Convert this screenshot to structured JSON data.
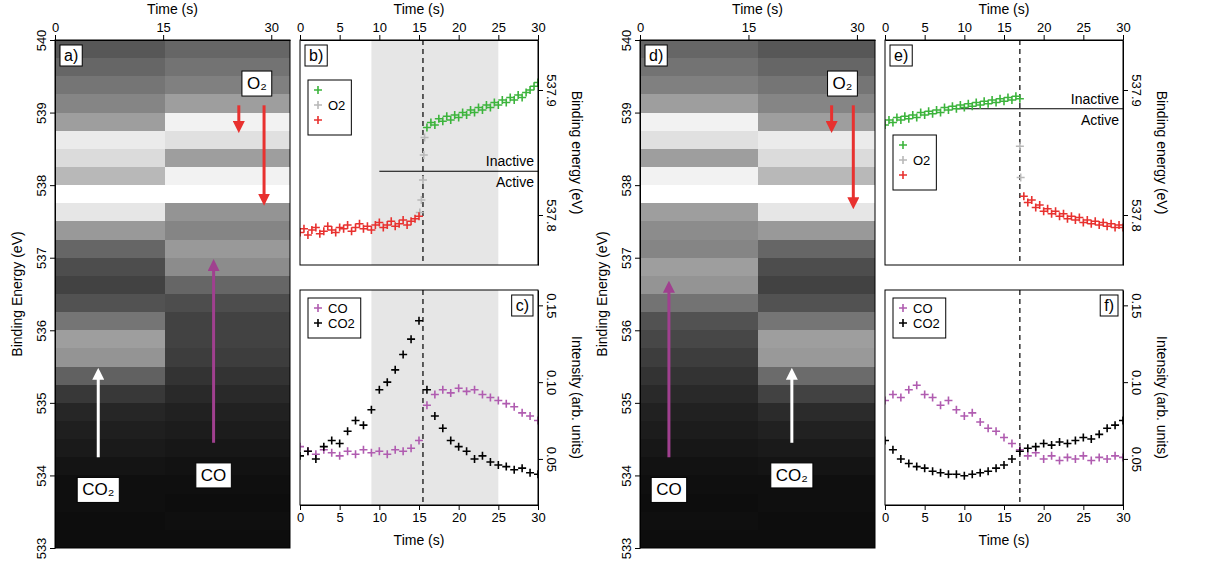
{
  "chart_data": [
    {
      "type": "heatmap",
      "label": "a)",
      "x_label": "Time (s)",
      "y_label": "Binding Energy (eV)",
      "xlim": [
        0,
        32.6
      ],
      "xticks": [
        0,
        15,
        30
      ],
      "ylim": [
        533,
        540
      ],
      "yticks": [
        533,
        534,
        535,
        536,
        537,
        538,
        539,
        540
      ],
      "x_edges": [
        0,
        15.2,
        32.6
      ],
      "y_edges": [
        533,
        533.25,
        533.5,
        533.75,
        534,
        534.25,
        534.5,
        534.75,
        535,
        535.25,
        535.5,
        535.75,
        536,
        536.25,
        536.5,
        536.75,
        537,
        537.25,
        537.5,
        537.75,
        538,
        538.25,
        538.5,
        538.75,
        539,
        539.25,
        539.5,
        539.75,
        540
      ],
      "zlim": [
        0,
        1
      ],
      "cells": [
        [
          0.05,
          0.05
        ],
        [
          0.05,
          0.06
        ],
        [
          0.06,
          0.05
        ],
        [
          0.06,
          0.06
        ],
        [
          0.08,
          0.07
        ],
        [
          0.1,
          0.09
        ],
        [
          0.12,
          0.11
        ],
        [
          0.15,
          0.13
        ],
        [
          0.22,
          0.16
        ],
        [
          0.38,
          0.2
        ],
        [
          0.58,
          0.24
        ],
        [
          0.62,
          0.26
        ],
        [
          0.46,
          0.26
        ],
        [
          0.32,
          0.3
        ],
        [
          0.26,
          0.4
        ],
        [
          0.3,
          0.55
        ],
        [
          0.4,
          0.6
        ],
        [
          0.6,
          0.52
        ],
        [
          0.9,
          0.58
        ],
        [
          1.0,
          1.0
        ],
        [
          0.72,
          0.95
        ],
        [
          0.86,
          0.62
        ],
        [
          0.92,
          0.88
        ],
        [
          0.62,
          0.95
        ],
        [
          0.52,
          0.62
        ],
        [
          0.46,
          0.5
        ],
        [
          0.4,
          0.45
        ],
        [
          0.34,
          0.4
        ]
      ],
      "annotations": [
        {
          "text": "O₂",
          "x": 28,
          "y": 539.4,
          "color": "#e8312f",
          "arrows": [
            [
              25.5,
              539.1,
              25.5,
              538.8
            ],
            [
              29,
              539.1,
              29,
              537.8
            ]
          ]
        },
        {
          "text": "CO₂",
          "x": 6,
          "y": 533.8,
          "color": "#ffffff",
          "arrows": [
            [
              6,
              534.25,
              6,
              535.4
            ]
          ]
        },
        {
          "text": "CO",
          "x": 22,
          "y": 534.0,
          "color": "#a0408f",
          "arrows": [
            [
              22,
              534.45,
              22,
              536.9
            ]
          ]
        }
      ]
    },
    {
      "type": "scatter",
      "label": "b)",
      "x_label": "Time (s)",
      "y_label": "Binding energy (eV)",
      "xlim": [
        0,
        30
      ],
      "xticks": [
        0,
        5,
        10,
        15,
        20,
        25,
        30
      ],
      "ylim": [
        537.76,
        537.94
      ],
      "yticks": [
        537.8,
        537.9
      ],
      "marker": "plus",
      "legend": "upper left",
      "span": [
        9,
        25
      ],
      "vline": 15.5,
      "divider": {
        "x": [
          10,
          30
        ],
        "y": 537.835,
        "labels": [
          "Inactive",
          "Active"
        ]
      },
      "series": [
        {
          "name": null,
          "color": "#3cb43c",
          "x": [
            16,
            16.5,
            17,
            17.5,
            18,
            18.5,
            19,
            19.5,
            20,
            20.5,
            21,
            21.5,
            22,
            22.5,
            23,
            23.5,
            24,
            24.5,
            25,
            25.5,
            26,
            26.5,
            27,
            27.5,
            28,
            28.5,
            29,
            29.5,
            30
          ],
          "values": [
            537.87,
            537.874,
            537.872,
            537.877,
            537.875,
            537.879,
            537.876,
            537.88,
            537.878,
            537.882,
            537.88,
            537.884,
            537.882,
            537.886,
            537.884,
            537.888,
            537.886,
            537.89,
            537.888,
            537.892,
            537.89,
            537.894,
            537.892,
            537.896,
            537.894,
            537.898,
            537.9,
            537.903,
            537.906
          ]
        },
        {
          "name": "O2",
          "color": "#b8b8b8",
          "x": [
            15.1,
            15.3,
            15.5,
            15.6,
            15.7
          ],
          "values": [
            537.802,
            537.812,
            537.828,
            537.848,
            537.862
          ]
        },
        {
          "name": null,
          "color": "#e8312f",
          "x": [
            0,
            0.5,
            1,
            1.5,
            2,
            2.5,
            3,
            3.5,
            4,
            4.5,
            5,
            5.5,
            6,
            6.5,
            7,
            7.5,
            8,
            8.5,
            9,
            9.5,
            10,
            10.5,
            11,
            11.5,
            12,
            12.5,
            13,
            13.5,
            14,
            14.5,
            15
          ],
          "values": [
            537.786,
            537.789,
            537.784,
            537.788,
            537.79,
            537.785,
            537.787,
            537.791,
            537.788,
            537.786,
            537.79,
            537.789,
            537.792,
            537.787,
            537.79,
            537.793,
            537.789,
            537.791,
            537.788,
            537.792,
            537.794,
            537.79,
            537.792,
            537.795,
            537.791,
            537.793,
            537.796,
            537.792,
            537.795,
            537.797,
            537.799
          ]
        }
      ]
    },
    {
      "type": "scatter",
      "label": "c)",
      "x_label": "Time (s)",
      "y_label": "Intensity (arb. units)",
      "xlim": [
        0,
        30
      ],
      "xticks": [
        0,
        5,
        10,
        15,
        20,
        25,
        30
      ],
      "ylim": [
        0.02,
        0.16
      ],
      "yticks": [
        0.05,
        {
          "value": 0.1,
          "label": "0.10"
        },
        0.15
      ],
      "marker": "plus",
      "legend": "upper left",
      "span": [
        9,
        25
      ],
      "vline": 15.5,
      "series": [
        {
          "name": "CO",
          "color": "#b05cb0",
          "x": [
            0,
            1,
            2,
            3,
            4,
            5,
            6,
            7,
            8,
            9,
            10,
            11,
            12,
            13,
            14,
            15,
            16,
            17,
            18,
            19,
            20,
            21,
            22,
            23,
            24,
            25,
            26,
            27,
            28,
            29,
            30
          ],
          "values": [
            0.058,
            0.055,
            0.053,
            0.056,
            0.054,
            0.052,
            0.055,
            0.053,
            0.056,
            0.054,
            0.055,
            0.053,
            0.056,
            0.055,
            0.057,
            0.062,
            0.085,
            0.092,
            0.095,
            0.093,
            0.096,
            0.094,
            0.095,
            0.092,
            0.09,
            0.088,
            0.086,
            0.084,
            0.08,
            0.078,
            0.075
          ]
        },
        {
          "name": "CO2",
          "color": "#000000",
          "x": [
            0,
            1,
            2,
            3,
            4,
            5,
            6,
            7,
            8,
            9,
            10,
            11,
            12,
            13,
            14,
            15,
            16,
            17,
            18,
            19,
            20,
            21,
            22,
            23,
            24,
            25,
            26,
            27,
            28,
            29,
            30
          ],
          "values": [
            0.052,
            0.055,
            0.05,
            0.058,
            0.062,
            0.06,
            0.068,
            0.075,
            0.072,
            0.082,
            0.095,
            0.1,
            0.108,
            0.118,
            0.128,
            0.14,
            0.095,
            0.078,
            0.07,
            0.062,
            0.058,
            0.055,
            0.05,
            0.052,
            0.048,
            0.046,
            0.045,
            0.043,
            0.044,
            0.041,
            0.04
          ]
        }
      ]
    },
    {
      "type": "heatmap",
      "label": "d)",
      "x_label": "Time (s)",
      "y_label": "Binding Energy (eV)",
      "xlim": [
        0,
        32.5
      ],
      "xticks": [
        0,
        15,
        30
      ],
      "ylim": [
        533,
        540
      ],
      "yticks": [
        533,
        534,
        535,
        536,
        537,
        538,
        539,
        540
      ],
      "x_edges": [
        0,
        16.3,
        32.5
      ],
      "y_edges": [
        533,
        533.25,
        533.5,
        533.75,
        534,
        534.25,
        534.5,
        534.75,
        535,
        535.25,
        535.5,
        535.75,
        536,
        536.25,
        536.5,
        536.75,
        537,
        537.25,
        537.5,
        537.75,
        538,
        538.25,
        538.5,
        538.75,
        539,
        539.25,
        539.5,
        539.75,
        540
      ],
      "zlim": [
        0,
        1
      ],
      "cells": [
        [
          0.05,
          0.05
        ],
        [
          0.06,
          0.05
        ],
        [
          0.05,
          0.06
        ],
        [
          0.06,
          0.06
        ],
        [
          0.07,
          0.08
        ],
        [
          0.09,
          0.1
        ],
        [
          0.11,
          0.13
        ],
        [
          0.13,
          0.17
        ],
        [
          0.16,
          0.26
        ],
        [
          0.2,
          0.42
        ],
        [
          0.24,
          0.6
        ],
        [
          0.28,
          0.62
        ],
        [
          0.32,
          0.46
        ],
        [
          0.45,
          0.32
        ],
        [
          0.58,
          0.26
        ],
        [
          0.62,
          0.3
        ],
        [
          0.52,
          0.4
        ],
        [
          0.55,
          0.6
        ],
        [
          0.62,
          0.9
        ],
        [
          1.0,
          1.0
        ],
        [
          0.95,
          0.72
        ],
        [
          0.62,
          0.86
        ],
        [
          0.88,
          0.92
        ],
        [
          0.95,
          0.62
        ],
        [
          0.62,
          0.52
        ],
        [
          0.5,
          0.46
        ],
        [
          0.45,
          0.4
        ],
        [
          0.4,
          0.34
        ]
      ],
      "annotations": [
        {
          "text": "O₂",
          "x": 28,
          "y": 539.4,
          "color": "#e8312f",
          "arrows": [
            [
              26.5,
              539.1,
              26.5,
              538.8
            ],
            [
              29.5,
              539.1,
              29.5,
              537.75
            ]
          ]
        },
        {
          "text": "CO",
          "x": 4,
          "y": 533.8,
          "color": "#a0408f",
          "arrows": [
            [
              4,
              534.25,
              4,
              536.6
            ]
          ]
        },
        {
          "text": "CO₂",
          "x": 21,
          "y": 534.0,
          "color": "#ffffff",
          "arrows": [
            [
              21,
              534.45,
              21,
              535.4
            ]
          ]
        }
      ]
    },
    {
      "type": "scatter",
      "label": "e)",
      "x_label": "Time (s)",
      "y_label": "Binding energy (eV)",
      "xlim": [
        0,
        30
      ],
      "xticks": [
        0,
        5,
        10,
        15,
        20,
        25,
        30
      ],
      "ylim": [
        537.76,
        537.94
      ],
      "yticks": [
        537.8,
        537.9
      ],
      "marker": "plus",
      "legend": "center left",
      "vline": 17,
      "divider": {
        "x": [
          9,
          30
        ],
        "y": 537.885,
        "labels": [
          "Inactive",
          "Active"
        ]
      },
      "series": [
        {
          "name": null,
          "color": "#3cb43c",
          "x": [
            0,
            0.5,
            1,
            1.5,
            2,
            2.5,
            3,
            3.5,
            4,
            4.5,
            5,
            5.5,
            6,
            6.5,
            7,
            7.5,
            8,
            8.5,
            9,
            9.5,
            10,
            10.5,
            11,
            11.5,
            12,
            12.5,
            13,
            13.5,
            14,
            14.5,
            15,
            15.5,
            16,
            16.5,
            17
          ],
          "values": [
            537.872,
            537.876,
            537.874,
            537.878,
            537.876,
            537.879,
            537.877,
            537.88,
            537.878,
            537.882,
            537.88,
            537.883,
            537.881,
            537.884,
            537.882,
            537.886,
            537.884,
            537.887,
            537.885,
            537.888,
            537.886,
            537.889,
            537.887,
            537.89,
            537.888,
            537.891,
            537.889,
            537.892,
            537.89,
            537.893,
            537.891,
            537.894,
            537.892,
            537.895,
            537.893
          ]
        },
        {
          "name": "O2",
          "color": "#b8b8b8",
          "x": [
            17.0,
            17.1
          ],
          "values": [
            537.855,
            537.83
          ]
        },
        {
          "name": null,
          "color": "#e8312f",
          "x": [
            17.5,
            18,
            18.5,
            19,
            19.5,
            20,
            20.5,
            21,
            21.5,
            22,
            22.5,
            23,
            23.5,
            24,
            24.5,
            25,
            25.5,
            26,
            26.5,
            27,
            27.5,
            28,
            28.5,
            29,
            29.5,
            30
          ],
          "values": [
            537.815,
            537.81,
            537.812,
            537.806,
            537.808,
            537.803,
            537.805,
            537.801,
            537.803,
            537.799,
            537.801,
            537.797,
            537.799,
            537.796,
            537.798,
            537.794,
            537.796,
            537.793,
            537.795,
            537.792,
            537.794,
            537.791,
            537.793,
            537.79,
            537.792,
            537.79
          ]
        }
      ]
    },
    {
      "type": "scatter",
      "label": "f)",
      "x_label": "Time (s)",
      "y_label": "Intensity (arb. units)",
      "xlim": [
        0,
        30
      ],
      "xticks": [
        0,
        5,
        10,
        15,
        20,
        25,
        30
      ],
      "ylim": [
        0.02,
        0.16
      ],
      "yticks": [
        0.05,
        {
          "value": 0.1,
          "label": "0.10"
        },
        0.15
      ],
      "marker": "plus",
      "legend": "upper left",
      "vline": 17,
      "series": [
        {
          "name": "CO",
          "color": "#b05cb0",
          "x": [
            0,
            1,
            2,
            3,
            4,
            5,
            6,
            7,
            8,
            9,
            10,
            11,
            12,
            13,
            14,
            15,
            16,
            17,
            18,
            19,
            20,
            21,
            22,
            23,
            24,
            25,
            26,
            27,
            28,
            29,
            30
          ],
          "values": [
            0.088,
            0.092,
            0.09,
            0.095,
            0.098,
            0.092,
            0.09,
            0.085,
            0.088,
            0.082,
            0.078,
            0.08,
            0.074,
            0.07,
            0.068,
            0.064,
            0.06,
            0.056,
            0.052,
            0.054,
            0.05,
            0.052,
            0.049,
            0.051,
            0.05,
            0.052,
            0.049,
            0.051,
            0.05,
            0.052,
            0.051
          ]
        },
        {
          "name": "CO2",
          "color": "#000000",
          "x": [
            0,
            1,
            2,
            3,
            4,
            5,
            6,
            7,
            8,
            9,
            10,
            11,
            12,
            13,
            14,
            15,
            16,
            17,
            18,
            19,
            20,
            21,
            22,
            23,
            24,
            25,
            26,
            27,
            28,
            29,
            30
          ],
          "values": [
            0.062,
            0.056,
            0.05,
            0.047,
            0.045,
            0.044,
            0.042,
            0.041,
            0.04,
            0.04,
            0.039,
            0.04,
            0.041,
            0.042,
            0.044,
            0.046,
            0.05,
            0.055,
            0.057,
            0.058,
            0.06,
            0.059,
            0.061,
            0.06,
            0.062,
            0.064,
            0.063,
            0.066,
            0.07,
            0.072,
            0.075
          ]
        }
      ]
    }
  ]
}
